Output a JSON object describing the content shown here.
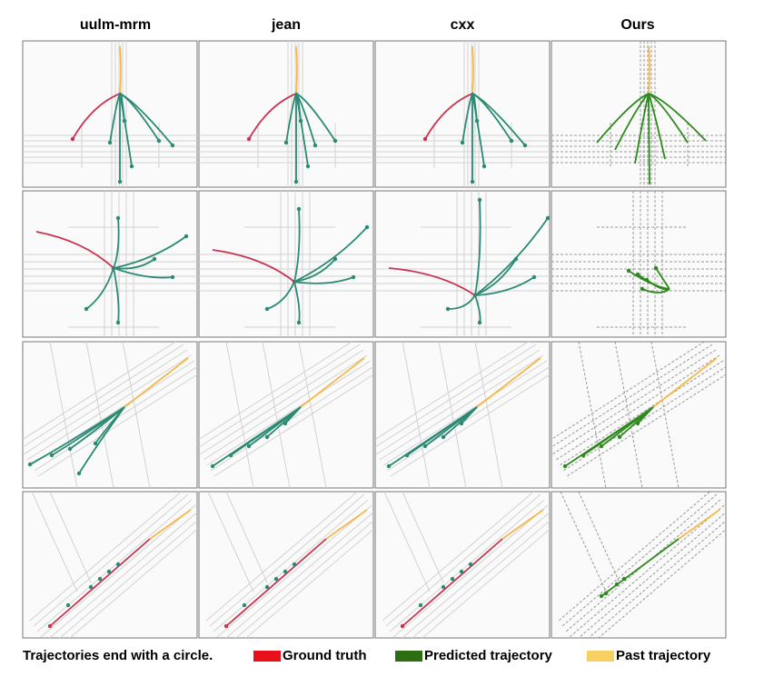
{
  "columns": [
    "uulm-mrm",
    "jean",
    "cxx",
    "Ours"
  ],
  "legend": {
    "note": "Trajectories end with a circle.",
    "items": [
      "Ground truth",
      "Predicted trajectory",
      "Past trajectory"
    ]
  }
}
